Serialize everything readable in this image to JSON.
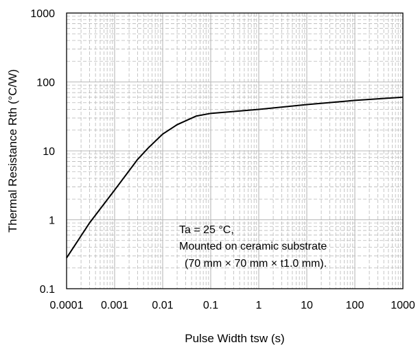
{
  "chart_data": {
    "type": "line",
    "title": "",
    "xlabel": "Pulse Width tsw (s)",
    "ylabel": "Thermal Resistance Rth (°C/W)",
    "x_scale": "log",
    "y_scale": "log",
    "xlim": [
      0.0001,
      1000
    ],
    "ylim": [
      0.1,
      1000
    ],
    "grid": true,
    "xtick_labels": [
      "0.0001",
      "0.001",
      "0.01",
      "0.1",
      "1",
      "10",
      "100",
      "1000"
    ],
    "ytick_labels": [
      "0.1",
      "1",
      "10",
      "100",
      "1000"
    ],
    "series": [
      {
        "x": [
          0.0001,
          0.0003,
          0.001,
          0.003,
          0.005,
          0.01,
          0.02,
          0.05,
          0.1,
          1,
          10,
          100,
          1000
        ],
        "y": [
          0.28,
          0.9,
          2.7,
          7.5,
          11,
          17.5,
          24,
          32,
          35,
          40,
          47,
          54,
          60
        ]
      }
    ],
    "annotations": [
      "Ta = 25 °C,",
      "Mounted on ceramic substrate",
      "(70 mm × 70 mm × t1.0 mm)."
    ],
    "line_color": "#000000",
    "grid_color": "#b8b8b8"
  }
}
